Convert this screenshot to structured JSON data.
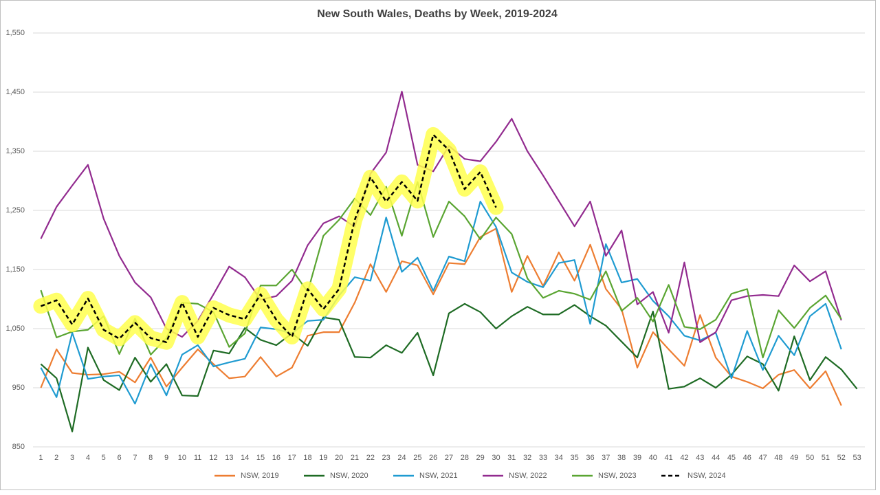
{
  "chart_data": {
    "type": "line",
    "title": "New South Wales, Deaths by Week, 2019-2024",
    "categories": [
      1,
      2,
      3,
      4,
      5,
      6,
      7,
      8,
      9,
      10,
      11,
      12,
      13,
      14,
      15,
      16,
      17,
      18,
      19,
      20,
      21,
      22,
      23,
      24,
      25,
      26,
      27,
      28,
      29,
      30,
      31,
      32,
      33,
      34,
      35,
      36,
      37,
      38,
      39,
      40,
      41,
      42,
      43,
      44,
      45,
      46,
      47,
      48,
      49,
      50,
      51,
      52,
      53
    ],
    "ylim": [
      850,
      1550
    ],
    "yticks": [
      {
        "value": 850,
        "label": "850"
      },
      {
        "value": 950,
        "label": "950"
      },
      {
        "value": 1050,
        "label": "1,050"
      },
      {
        "value": 1150,
        "label": "1,150"
      },
      {
        "value": 1250,
        "label": "1,250"
      },
      {
        "value": 1350,
        "label": "1,350"
      },
      {
        "value": 1450,
        "label": "1,450"
      },
      {
        "value": 1550,
        "label": "1,550"
      }
    ],
    "grid": true,
    "legend": "bottom",
    "series": [
      {
        "name": "NSW, 2019",
        "color": "#ed7d31",
        "values": [
          950,
          1015,
          975,
          972,
          973,
          977,
          959,
          1001,
          952,
          984,
          1015,
          990,
          966,
          969,
          1002,
          969,
          984,
          1038,
          1044,
          1044,
          1094,
          1159,
          1112,
          1164,
          1157,
          1108,
          1161,
          1159,
          1205,
          1219,
          1112,
          1173,
          1122,
          1179,
          1131,
          1192,
          1117,
          1083,
          984,
          1044,
          1015,
          987,
          1073,
          1001,
          969,
          960,
          949,
          972,
          980,
          949,
          978,
          920,
          null
        ]
      },
      {
        "name": "NSW, 2020",
        "color": "#1e6b24",
        "values": [
          990,
          966,
          876,
          1018,
          963,
          946,
          1001,
          960,
          990,
          937,
          936,
          1013,
          1008,
          1051,
          1031,
          1022,
          1042,
          1021,
          1069,
          1065,
          1002,
          1001,
          1022,
          1009,
          1043,
          971,
          1076,
          1092,
          1078,
          1050,
          1071,
          1087,
          1074,
          1074,
          1090,
          1071,
          1055,
          1028,
          1001,
          1079,
          948,
          952,
          966,
          950,
          972,
          1003,
          990,
          945,
          1037,
          963,
          1002,
          981,
          948
        ]
      },
      {
        "name": "NSW, 2021",
        "color": "#1f9bd1",
        "values": [
          984,
          934,
          1043,
          965,
          969,
          971,
          923,
          990,
          937,
          1006,
          1022,
          986,
          993,
          999,
          1052,
          1049,
          1042,
          1063,
          1065,
          1106,
          1137,
          1131,
          1238,
          1146,
          1170,
          1114,
          1172,
          1164,
          1265,
          1222,
          1145,
          1129,
          1120,
          1161,
          1166,
          1058,
          1193,
          1128,
          1134,
          1097,
          1071,
          1038,
          1030,
          1043,
          966,
          1046,
          980,
          1038,
          1005,
          1071,
          1092,
          1015,
          null
        ]
      },
      {
        "name": "NSW, 2022",
        "color": "#922b8f",
        "values": [
          1202,
          1256,
          1292,
          1327,
          1236,
          1173,
          1128,
          1103,
          1050,
          1036,
          1063,
          1108,
          1155,
          1137,
          1099,
          1105,
          1131,
          1191,
          1228,
          1240,
          1222,
          1312,
          1348,
          1451,
          1327,
          1316,
          1359,
          1337,
          1333,
          1366,
          1405,
          1350,
          1309,
          1266,
          1223,
          1265,
          1173,
          1216,
          1091,
          1112,
          1043,
          1162,
          1027,
          1044,
          1098,
          1105,
          1107,
          1105,
          1157,
          1130,
          1147,
          1064,
          null
        ]
      },
      {
        "name": "NSW, 2023",
        "color": "#5aa532",
        "values": [
          1115,
          1035,
          1045,
          1048,
          1071,
          1007,
          1067,
          1006,
          1034,
          1094,
          1092,
          1078,
          1019,
          1042,
          1123,
          1123,
          1150,
          1112,
          1207,
          1234,
          1270,
          1242,
          1290,
          1207,
          1298,
          1205,
          1265,
          1240,
          1201,
          1238,
          1210,
          1135,
          1102,
          1114,
          1109,
          1099,
          1147,
          1080,
          1102,
          1062,
          1124,
          1053,
          1049,
          1065,
          1109,
          1117,
          1001,
          1081,
          1051,
          1085,
          1106,
          1066,
          null
        ]
      },
      {
        "name": "NSW, 2024",
        "color": "#000000",
        "dashed": true,
        "highlight": "#ffff4d",
        "values": [
          1088,
          1098,
          1057,
          1101,
          1048,
          1033,
          1060,
          1034,
          1027,
          1094,
          1036,
          1085,
          1073,
          1066,
          1108,
          1065,
          1036,
          1117,
          1083,
          1117,
          1234,
          1306,
          1265,
          1298,
          1266,
          1378,
          1352,
          1286,
          1315,
          1255,
          null,
          null,
          null,
          null,
          null,
          null,
          null,
          null,
          null,
          null,
          null,
          null,
          null,
          null,
          null,
          null,
          null,
          null,
          null,
          null,
          null,
          null,
          null
        ]
      }
    ]
  }
}
